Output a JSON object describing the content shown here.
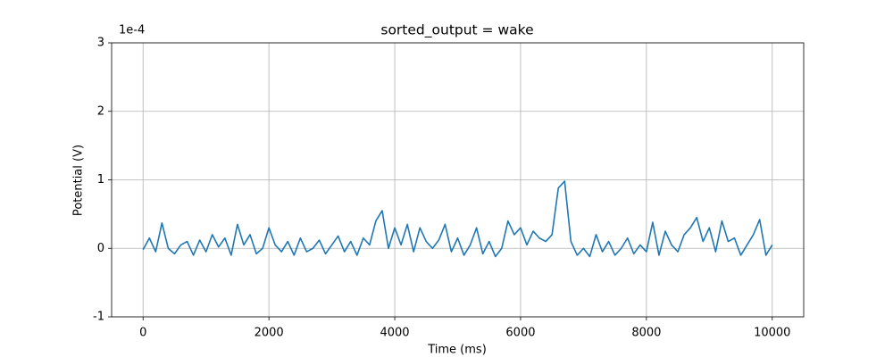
{
  "chart_data": {
    "type": "line",
    "title": "sorted_output = wake",
    "x_label": "Time (ms)",
    "y_label": "Potential (V)",
    "y_offset_label": "1e-4",
    "color": "#1f77b4",
    "grid": true,
    "xlim": [
      -500,
      10500
    ],
    "xticks": [
      0,
      2000,
      4000,
      6000,
      8000,
      10000
    ],
    "ylim": [
      -1,
      3
    ],
    "yticks": [
      -1,
      0,
      1,
      2,
      3
    ],
    "x": [
      0,
      100,
      200,
      300,
      400,
      500,
      600,
      700,
      800,
      900,
      1000,
      1100,
      1200,
      1300,
      1400,
      1500,
      1600,
      1700,
      1800,
      1900,
      2000,
      2100,
      2200,
      2300,
      2400,
      2500,
      2600,
      2700,
      2800,
      2900,
      3000,
      3100,
      3200,
      3300,
      3400,
      3500,
      3600,
      3700,
      3800,
      3900,
      4000,
      4100,
      4200,
      4300,
      4400,
      4500,
      4600,
      4700,
      4800,
      4900,
      5000,
      5100,
      5200,
      5300,
      5400,
      5500,
      5600,
      5700,
      5800,
      5900,
      6000,
      6100,
      6200,
      6300,
      6400,
      6500,
      6600,
      6700,
      6800,
      6900,
      7000,
      7100,
      7200,
      7300,
      7400,
      7500,
      7600,
      7700,
      7800,
      7900,
      8000,
      8100,
      8200,
      8300,
      8400,
      8500,
      8600,
      8700,
      8800,
      8900,
      9000,
      9100,
      9200,
      9300,
      9400,
      9500,
      9600,
      9700,
      9800,
      9900,
      10000
    ],
    "values": [
      -0.02,
      0.15,
      -0.05,
      0.37,
      0.0,
      -0.08,
      0.05,
      0.1,
      -0.1,
      0.12,
      -0.05,
      0.2,
      0.02,
      0.15,
      -0.1,
      0.35,
      0.05,
      0.2,
      -0.08,
      0.0,
      0.3,
      0.05,
      -0.05,
      0.1,
      -0.1,
      0.15,
      -0.05,
      0.0,
      0.12,
      -0.08,
      0.05,
      0.18,
      -0.05,
      0.1,
      -0.1,
      0.15,
      0.05,
      0.4,
      0.55,
      0.0,
      0.3,
      0.05,
      0.35,
      -0.05,
      0.3,
      0.1,
      0.0,
      0.12,
      0.35,
      -0.05,
      0.15,
      -0.1,
      0.05,
      0.3,
      -0.08,
      0.1,
      -0.12,
      0.0,
      0.4,
      0.2,
      0.3,
      0.05,
      0.25,
      0.15,
      0.1,
      0.2,
      0.88,
      0.98,
      0.1,
      -0.1,
      0.0,
      -0.12,
      0.2,
      -0.05,
      0.1,
      -0.1,
      0.0,
      0.15,
      -0.08,
      0.05,
      -0.05,
      0.38,
      -0.1,
      0.25,
      0.05,
      -0.05,
      0.2,
      0.3,
      0.45,
      0.1,
      0.3,
      -0.05,
      0.4,
      0.1,
      0.15,
      -0.1,
      0.05,
      0.2,
      0.42,
      -0.1,
      0.05
    ]
  }
}
